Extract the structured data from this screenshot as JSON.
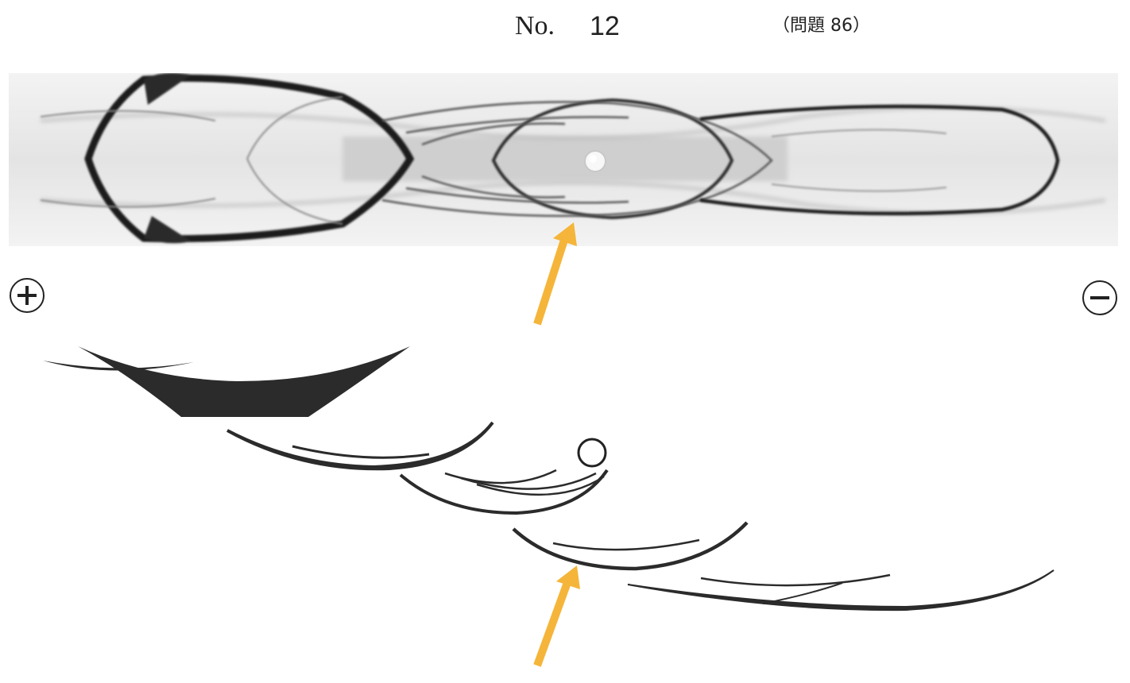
{
  "header": {
    "no_label": "No.",
    "no_number": "12",
    "problem_ref": "（問題 86）"
  },
  "electrodes": {
    "anode": "plus-icon",
    "cathode": "minus-icon"
  },
  "colors": {
    "arrow": "#f5b53a",
    "band": "#2b2b2b",
    "photo_background": "#eeeeee"
  }
}
